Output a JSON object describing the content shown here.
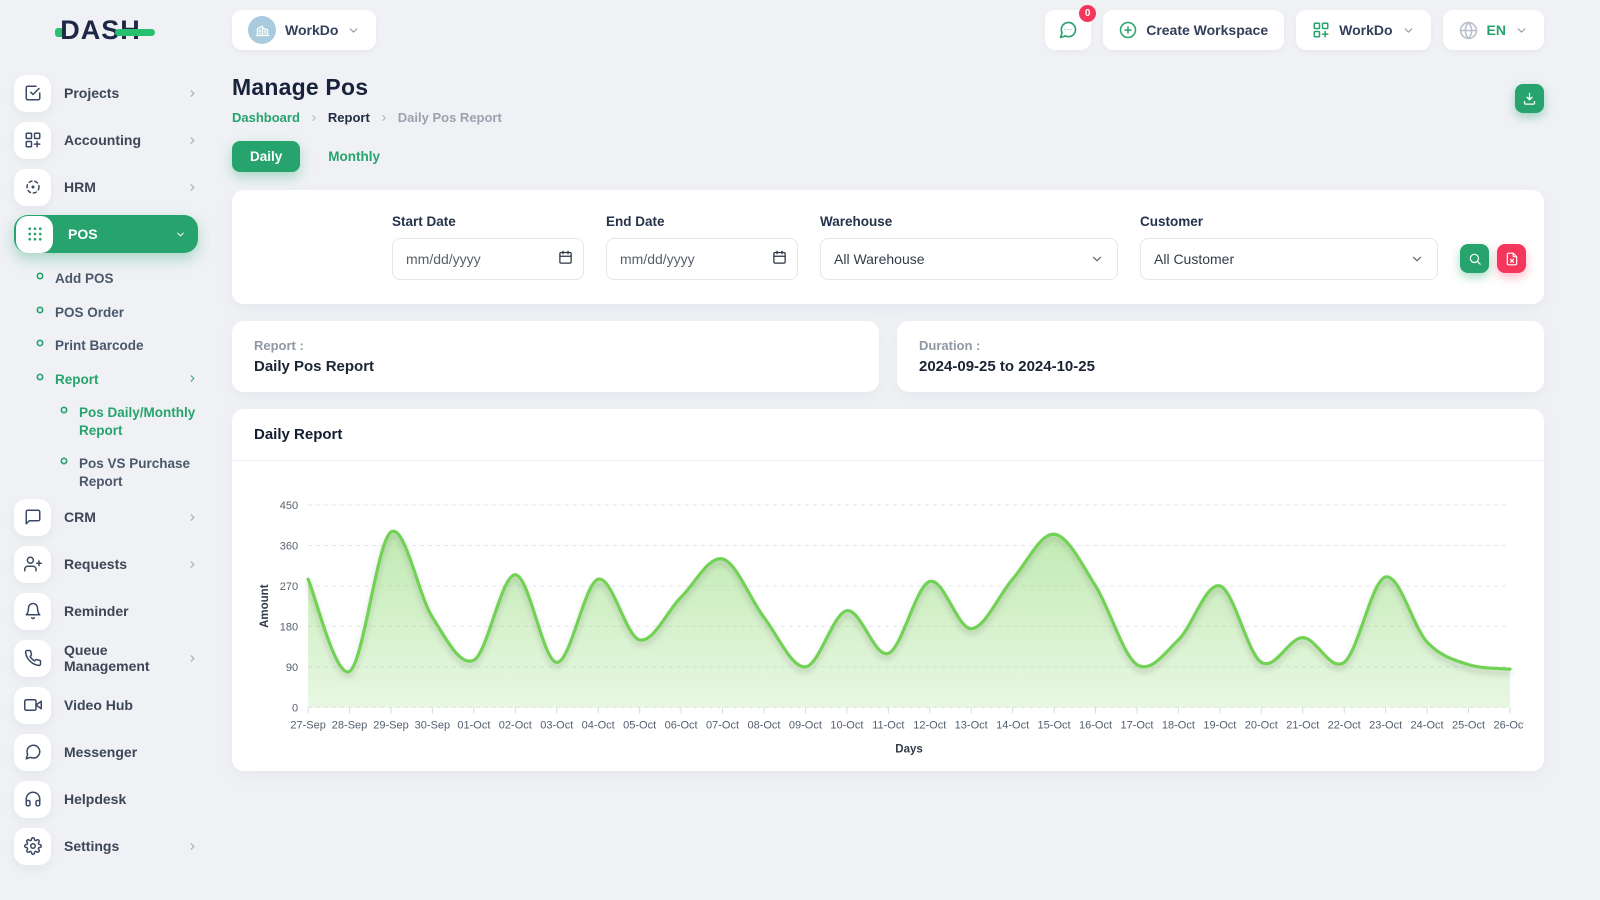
{
  "brand": {
    "logo_text": "DASH"
  },
  "topbar": {
    "workspace_switcher_label": "WorkDo",
    "messages_badge": "0",
    "create_workspace_label": "Create Workspace",
    "workspace_menu_label": "WorkDo",
    "language": "EN"
  },
  "sidebar": {
    "items": [
      {
        "label": "Projects"
      },
      {
        "label": "Accounting"
      },
      {
        "label": "HRM"
      },
      {
        "label": "POS"
      },
      {
        "label": "CRM"
      },
      {
        "label": "Requests"
      },
      {
        "label": "Reminder"
      },
      {
        "label": "Queue Management"
      },
      {
        "label": "Video Hub"
      },
      {
        "label": "Messenger"
      },
      {
        "label": "Helpdesk"
      },
      {
        "label": "Settings"
      }
    ],
    "pos_submenu": [
      {
        "label": "Add POS"
      },
      {
        "label": "POS Order"
      },
      {
        "label": "Print Barcode"
      },
      {
        "label": "Report"
      }
    ],
    "report_submenu": [
      {
        "label": "Pos Daily/Monthly Report"
      },
      {
        "label": "Pos VS Purchase Report"
      }
    ]
  },
  "page": {
    "title": "Manage Pos",
    "breadcrumb": [
      "Dashboard",
      "Report",
      "Daily Pos Report"
    ],
    "tabs": {
      "daily": "Daily",
      "monthly": "Monthly"
    }
  },
  "filters": {
    "start_date": {
      "label": "Start Date",
      "placeholder": "mm/dd/yyyy"
    },
    "end_date": {
      "label": "End Date",
      "placeholder": "mm/dd/yyyy"
    },
    "warehouse": {
      "label": "Warehouse",
      "value": "All Warehouse"
    },
    "customer": {
      "label": "Customer",
      "value": "All Customer"
    }
  },
  "summary": {
    "report_label": "Report :",
    "report_value": "Daily Pos Report",
    "duration_label": "Duration :",
    "duration_value": "2024-09-25 to 2024-10-25"
  },
  "chart_card": {
    "title": "Daily Report"
  },
  "chart_data": {
    "type": "area",
    "title": "Daily Report",
    "xlabel": "Days",
    "ylabel": "Amount",
    "ylim": [
      0,
      450
    ],
    "yticks": [
      0,
      90,
      180,
      270,
      360,
      450
    ],
    "grid": true,
    "legend": "none",
    "line_color": "#72d254",
    "fill_color": "#8ed973",
    "categories": [
      "27-Sep",
      "28-Sep",
      "29-Sep",
      "30-Sep",
      "01-Oct",
      "02-Oct",
      "03-Oct",
      "04-Oct",
      "05-Oct",
      "06-Oct",
      "07-Oct",
      "08-Oct",
      "09-Oct",
      "10-Oct",
      "11-Oct",
      "12-Oct",
      "13-Oct",
      "14-Oct",
      "15-Oct",
      "16-Oct",
      "17-Oct",
      "18-Oct",
      "19-Oct",
      "20-Oct",
      "21-Oct",
      "22-Oct",
      "23-Oct",
      "24-Oct",
      "25-Oct",
      "26-Oct"
    ],
    "series": [
      {
        "name": "Amount",
        "values": [
          285,
          80,
          390,
          200,
          105,
          295,
          100,
          285,
          150,
          245,
          330,
          200,
          90,
          215,
          120,
          280,
          175,
          285,
          385,
          270,
          95,
          150,
          270,
          100,
          155,
          100,
          290,
          145,
          95,
          85
        ]
      }
    ]
  },
  "colors": {
    "primary_green": "#27a36d",
    "danger_red": "#f5365c",
    "navy_text": "#1d2746",
    "chart_line": "#72d254",
    "chart_fill": "#8ed973",
    "page_background": "#eff1f5"
  }
}
